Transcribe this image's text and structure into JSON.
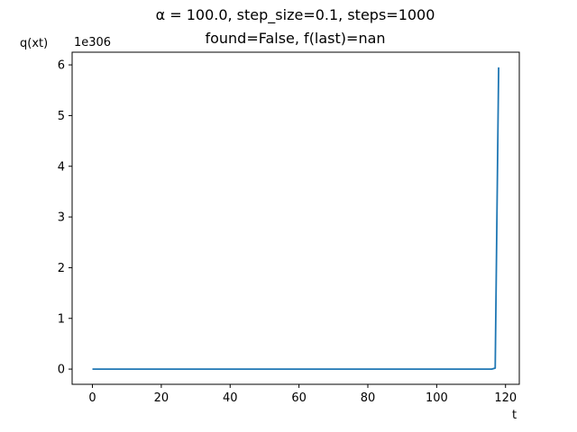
{
  "chart_data": {
    "type": "line",
    "title": "α = 100.0, step_size=0.1, steps=1000",
    "subtitle": "found=False, f(last)=nan",
    "xlabel": "t",
    "ylabel": "q(xt)",
    "y_offset_label": "1e306",
    "xlim": [
      -5.9,
      124.0
    ],
    "ylim": [
      -0.3,
      6.25
    ],
    "x_ticks": [
      0,
      20,
      40,
      60,
      80,
      100,
      120
    ],
    "y_ticks": [
      0,
      1,
      2,
      3,
      4,
      5,
      6
    ],
    "grid": false,
    "series": [
      {
        "color": "#1f77b4",
        "x": [
          0,
          20,
          40,
          60,
          80,
          100,
          116,
          117,
          118
        ],
        "y": [
          0,
          0,
          0,
          0,
          0,
          0,
          0,
          0.02,
          5.95
        ]
      }
    ]
  }
}
